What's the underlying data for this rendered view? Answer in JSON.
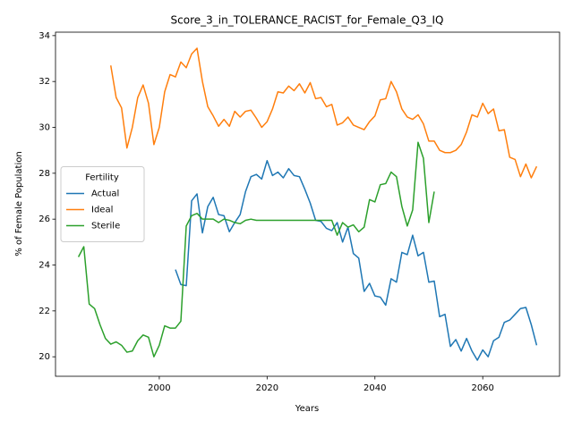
{
  "chart_data": {
    "type": "line",
    "title": "Score_3_in_TOLERANCE_RACIST_for_Female_Q3_IQ",
    "xlabel": "Years",
    "ylabel": "% of Female Population",
    "legend_title": "Fertility",
    "legend": "center left",
    "x": [
      1985,
      1986,
      1987,
      1988,
      1989,
      1990,
      1991,
      1992,
      1993,
      1994,
      1995,
      1996,
      1997,
      1998,
      1999,
      2000,
      2001,
      2002,
      2003,
      2004,
      2005,
      2006,
      2007,
      2008,
      2009,
      2010,
      2011,
      2012,
      2013,
      2014,
      2015,
      2016,
      2017,
      2018,
      2019,
      2020,
      2021,
      2022,
      2023,
      2024,
      2025,
      2026,
      2027,
      2028,
      2029,
      2030,
      2031,
      2032,
      2033,
      2034,
      2035,
      2036,
      2037,
      2038,
      2039,
      2040,
      2041,
      2042,
      2043,
      2044,
      2045,
      2046,
      2047,
      2048,
      2049,
      2050,
      2051,
      2052,
      2053,
      2054,
      2055,
      2056,
      2057,
      2058,
      2059,
      2060,
      2061,
      2062,
      2063,
      2064,
      2065,
      2066,
      2067,
      2068,
      2069,
      2070
    ],
    "series": [
      {
        "name": "Actual",
        "color": "#1f77b4",
        "values": [
          null,
          null,
          null,
          null,
          null,
          null,
          null,
          null,
          null,
          null,
          null,
          null,
          null,
          null,
          null,
          null,
          null,
          null,
          23.8,
          23.15,
          23.1,
          26.8,
          27.1,
          25.4,
          26.55,
          26.95,
          26.2,
          26.15,
          25.45,
          25.85,
          26.2,
          27.2,
          27.85,
          27.95,
          27.75,
          28.55,
          27.9,
          28.05,
          27.8,
          28.2,
          27.9,
          27.85,
          27.3,
          26.7,
          25.95,
          25.9,
          25.6,
          25.5,
          25.85,
          25.0,
          25.65,
          24.5,
          24.3,
          22.85,
          23.2,
          22.65,
          22.6,
          22.25,
          23.4,
          23.25,
          24.55,
          24.45,
          25.3,
          24.4,
          24.55,
          23.25,
          23.3,
          21.75,
          21.85,
          20.45,
          20.75,
          20.25,
          20.8,
          20.25,
          19.85,
          20.3,
          20.0,
          20.7,
          20.85,
          21.5,
          21.6,
          21.85,
          22.1,
          22.15,
          21.4,
          20.5
        ]
      },
      {
        "name": "Ideal",
        "color": "#ff7f0e",
        "values": [
          null,
          null,
          null,
          null,
          null,
          null,
          32.7,
          31.3,
          30.85,
          29.1,
          30.0,
          31.3,
          31.85,
          31.05,
          29.25,
          30.0,
          31.55,
          32.3,
          32.2,
          32.85,
          32.6,
          33.2,
          33.45,
          32.0,
          30.9,
          30.5,
          30.05,
          30.35,
          30.05,
          30.7,
          30.45,
          30.7,
          30.75,
          30.4,
          30.0,
          30.25,
          30.8,
          31.55,
          31.5,
          31.8,
          31.6,
          31.9,
          31.5,
          31.95,
          31.25,
          31.3,
          30.9,
          31.0,
          30.1,
          30.2,
          30.45,
          30.1,
          30.0,
          29.9,
          30.25,
          30.5,
          31.2,
          31.25,
          32.0,
          31.55,
          30.8,
          30.45,
          30.35,
          30.55,
          30.15,
          29.4,
          29.4,
          29.0,
          28.9,
          28.9,
          29.0,
          29.25,
          29.8,
          30.55,
          30.45,
          31.05,
          30.6,
          30.8,
          29.85,
          29.9,
          28.7,
          28.6,
          27.85,
          28.4,
          27.8,
          28.3
        ]
      },
      {
        "name": "Sterile",
        "color": "#2ca02c",
        "values": [
          24.35,
          24.8,
          22.3,
          22.1,
          21.4,
          20.8,
          20.55,
          20.65,
          20.5,
          20.2,
          20.25,
          20.7,
          20.95,
          20.85,
          20.0,
          20.5,
          21.35,
          21.25,
          21.25,
          21.55,
          25.7,
          26.15,
          26.25,
          26.0,
          26.0,
          26.0,
          25.85,
          26.0,
          25.95,
          25.85,
          25.8,
          25.95,
          26.0,
          25.95,
          25.95,
          25.95,
          25.95,
          25.95,
          25.95,
          25.95,
          25.95,
          25.95,
          25.95,
          25.95,
          25.95,
          25.95,
          25.95,
          25.95,
          25.3,
          25.85,
          25.65,
          25.75,
          25.45,
          25.65,
          26.85,
          26.75,
          27.5,
          27.55,
          28.05,
          27.85,
          26.55,
          25.7,
          26.4,
          29.35,
          28.65,
          25.85,
          27.2,
          null,
          null,
          null,
          null,
          null,
          null,
          null,
          null,
          null,
          null,
          null,
          null,
          null,
          null,
          null,
          null,
          null,
          null,
          null
        ]
      }
    ],
    "xlim": [
      1980.75,
      2074.25
    ],
    "xticks": [
      2000,
      2020,
      2040,
      2060
    ],
    "ylim": [
      19.15,
      34.15
    ],
    "yticks": [
      20,
      22,
      24,
      26,
      28,
      30,
      32,
      34
    ]
  }
}
